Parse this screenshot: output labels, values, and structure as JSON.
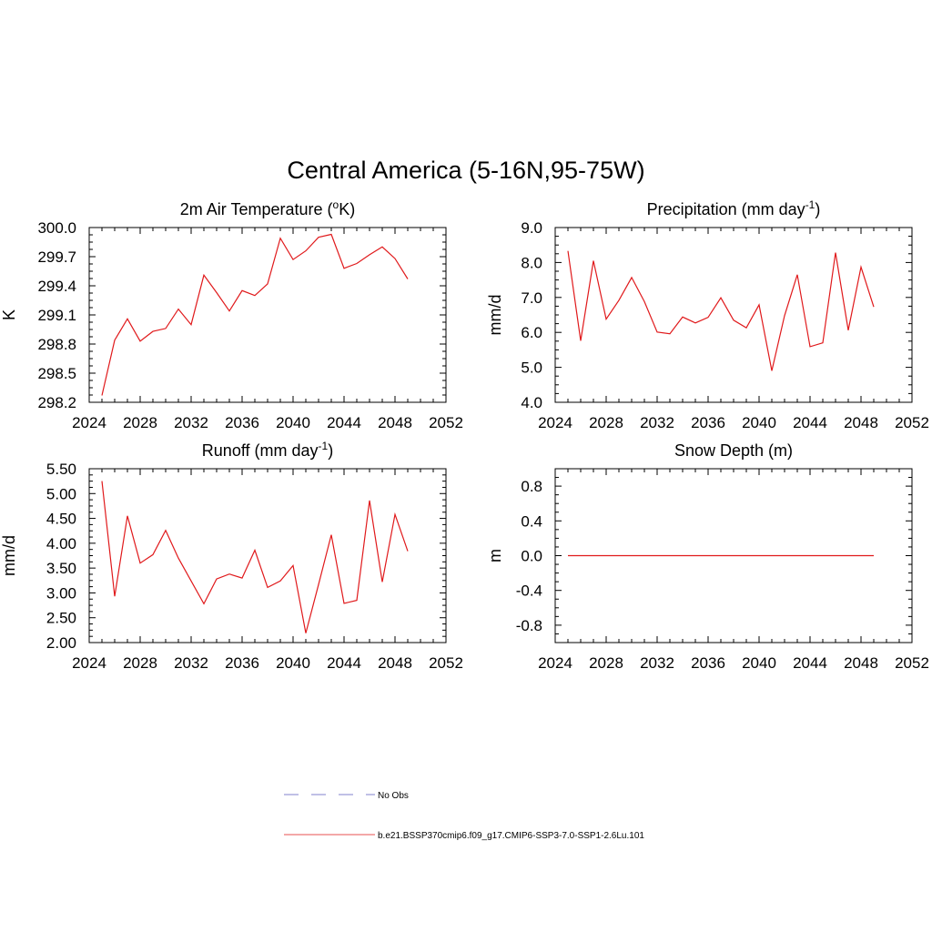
{
  "title": "Central America (5-16N,95-75W)",
  "colors": {
    "model_line": "#e0191b",
    "obs_line": "#9a9ad8",
    "axis": "#000000"
  },
  "chart_data": [
    {
      "type": "line",
      "title": "2m Air Temperature (",
      "title_sup": "o",
      "title_after": "K)",
      "title_sup2": "",
      "title_end": "",
      "ylabel": "K",
      "xlim": [
        2024,
        2052
      ],
      "ylim": [
        298.2,
        300.0
      ],
      "xticks": [
        2024,
        2028,
        2032,
        2036,
        2040,
        2044,
        2048,
        2052
      ],
      "yticks": [
        "298.2",
        "298.5",
        "298.8",
        "299.1",
        "299.4",
        "299.7",
        "300.0"
      ],
      "x": [
        2025,
        2026,
        2027,
        2028,
        2029,
        2030,
        2031,
        2032,
        2033,
        2034,
        2035,
        2036,
        2037,
        2038,
        2039,
        2040,
        2041,
        2042,
        2043,
        2044,
        2045,
        2046,
        2047,
        2048,
        2049
      ],
      "series": [
        {
          "values": [
            298.27,
            298.84,
            299.06,
            298.83,
            298.93,
            298.96,
            299.16,
            299.0,
            299.51,
            299.33,
            299.14,
            299.35,
            299.3,
            299.42,
            299.89,
            299.67,
            299.76,
            299.9,
            299.93,
            299.58,
            299.63,
            299.72,
            299.8,
            299.68,
            299.47
          ]
        }
      ]
    },
    {
      "type": "line",
      "title": "Precipitation (mm day",
      "title_sup": "-1",
      "title_after": ")",
      "ylabel": "mm/d",
      "xlim": [
        2024,
        2052
      ],
      "ylim": [
        4.0,
        9.0
      ],
      "xticks": [
        2024,
        2028,
        2032,
        2036,
        2040,
        2044,
        2048,
        2052
      ],
      "yticks": [
        "4.0",
        "5.0",
        "6.0",
        "7.0",
        "8.0",
        "9.0"
      ],
      "x": [
        2025,
        2026,
        2027,
        2028,
        2029,
        2030,
        2031,
        2032,
        2033,
        2034,
        2035,
        2036,
        2037,
        2038,
        2039,
        2040,
        2041,
        2042,
        2043,
        2044,
        2045,
        2046,
        2047,
        2048,
        2049
      ],
      "series": [
        {
          "values": [
            8.33,
            5.76,
            8.05,
            6.38,
            6.92,
            7.57,
            6.88,
            6.01,
            5.96,
            6.44,
            6.27,
            6.43,
            6.99,
            6.35,
            6.13,
            6.79,
            4.9,
            6.48,
            7.65,
            5.59,
            5.7,
            8.28,
            6.06,
            7.87,
            6.73
          ]
        }
      ]
    },
    {
      "type": "line",
      "title": "Runoff (mm day",
      "title_sup": "-1",
      "title_after": ")",
      "ylabel": "mm/d",
      "xlim": [
        2024,
        2052
      ],
      "ylim": [
        2.0,
        5.5
      ],
      "xticks": [
        2024,
        2028,
        2032,
        2036,
        2040,
        2044,
        2048,
        2052
      ],
      "yticks": [
        "2.00",
        "2.50",
        "3.00",
        "3.50",
        "4.00",
        "4.50",
        "5.00",
        "5.50"
      ],
      "x": [
        2025,
        2026,
        2027,
        2028,
        2029,
        2030,
        2031,
        2032,
        2033,
        2034,
        2035,
        2036,
        2037,
        2038,
        2039,
        2040,
        2041,
        2042,
        2043,
        2044,
        2045,
        2046,
        2047,
        2048,
        2049
      ],
      "series": [
        {
          "values": [
            5.25,
            2.93,
            4.55,
            3.6,
            3.77,
            4.26,
            3.7,
            3.24,
            2.78,
            3.28,
            3.38,
            3.3,
            3.86,
            3.11,
            3.24,
            3.55,
            2.19,
            3.17,
            4.17,
            2.79,
            2.85,
            4.86,
            3.22,
            4.58,
            3.84
          ]
        }
      ]
    },
    {
      "type": "line",
      "title": "Snow Depth (m)",
      "title_sup": "",
      "title_after": "",
      "ylabel": "m",
      "xlim": [
        2024,
        2052
      ],
      "ylim": [
        -1.0,
        1.0
      ],
      "xticks": [
        2024,
        2028,
        2032,
        2036,
        2040,
        2044,
        2048,
        2052
      ],
      "yticks": [
        "-0.8",
        "-0.4",
        "0.0",
        "0.4",
        "0.8"
      ],
      "ytick_values": [
        -0.8,
        -0.4,
        0.0,
        0.4,
        0.8
      ],
      "x": [
        2025,
        2049
      ],
      "series": [
        {
          "values": [
            0.0,
            0.0
          ]
        }
      ]
    }
  ],
  "legend": [
    {
      "label": "No Obs",
      "style": "dashed"
    },
    {
      "label": "b.e21.BSSP370cmip6.f09_g17.CMIP6-SSP3-7.0-SSP1-2.6Lu.101",
      "style": "solid"
    }
  ]
}
